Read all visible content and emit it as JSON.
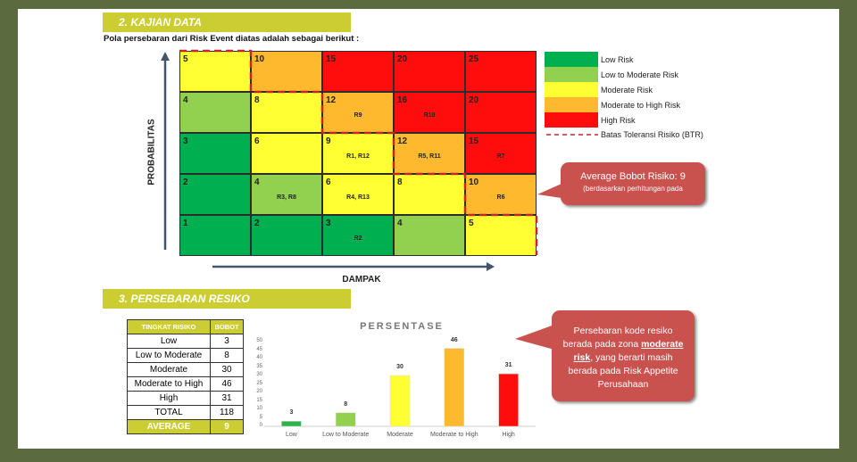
{
  "section2": {
    "title": "2. KAJIAN DATA",
    "intro": "Pola persebaran dari Risk Event diatas adalah sebagai berikut :"
  },
  "matrix": {
    "y_label": "PROBABILITAS",
    "x_label": "DAMPAK",
    "rows": [
      [
        {
          "v": "5",
          "r": "",
          "c": "yellow"
        },
        {
          "v": "10",
          "r": "",
          "c": "orange"
        },
        {
          "v": "15",
          "r": "",
          "c": "red"
        },
        {
          "v": "20",
          "r": "",
          "c": "red"
        },
        {
          "v": "25",
          "r": "",
          "c": "red"
        }
      ],
      [
        {
          "v": "4",
          "r": "",
          "c": "lightgreen"
        },
        {
          "v": "8",
          "r": "",
          "c": "yellow"
        },
        {
          "v": "12",
          "r": "R9",
          "c": "orange"
        },
        {
          "v": "16",
          "r": "R10",
          "c": "red"
        },
        {
          "v": "20",
          "r": "",
          "c": "red"
        }
      ],
      [
        {
          "v": "3",
          "r": "",
          "c": "green"
        },
        {
          "v": "6",
          "r": "",
          "c": "yellow"
        },
        {
          "v": "9",
          "r": "R1, R12",
          "c": "yellow"
        },
        {
          "v": "12",
          "r": "R5, R11",
          "c": "orange"
        },
        {
          "v": "15",
          "r": "R7",
          "c": "red"
        }
      ],
      [
        {
          "v": "2",
          "r": "",
          "c": "green"
        },
        {
          "v": "4",
          "r": "R3, R8",
          "c": "lightgreen"
        },
        {
          "v": "6",
          "r": "R4, R13",
          "c": "yellow"
        },
        {
          "v": "8",
          "r": "",
          "c": "yellow"
        },
        {
          "v": "10",
          "r": "R6",
          "c": "orange"
        }
      ],
      [
        {
          "v": "1",
          "r": "",
          "c": "green"
        },
        {
          "v": "2",
          "r": "",
          "c": "green"
        },
        {
          "v": "3",
          "r": "R2",
          "c": "green"
        },
        {
          "v": "4",
          "r": "",
          "c": "lightgreen"
        },
        {
          "v": "5",
          "r": "",
          "c": "yellow"
        }
      ]
    ]
  },
  "colors": {
    "green": "#00b050",
    "lightgreen": "#92d050",
    "yellow": "#ffff33",
    "orange": "#ffb92e",
    "red": "#ff0d0d",
    "btr": "#c0282a"
  },
  "legend": [
    {
      "label": "Low Risk",
      "c": "green"
    },
    {
      "label": "Low to Moderate Risk",
      "c": "lightgreen"
    },
    {
      "label": "Moderate Risk",
      "c": "yellow"
    },
    {
      "label": "Moderate to High Risk",
      "c": "orange"
    },
    {
      "label": "High Risk",
      "c": "red"
    }
  ],
  "legend_btr": "Batas Toleransi Risiko (BTR)",
  "callout1": {
    "line1": "Average Bobot Risiko: 9",
    "line2": "(berdasarkan perhitungan pada"
  },
  "section3": {
    "title": "3. PERSEBARAN RESIKO"
  },
  "table": {
    "headers": [
      "TINGKAT RISIKO",
      "BOBOT"
    ],
    "rows": [
      [
        "Low",
        "3"
      ],
      [
        "Low to Moderate",
        "8"
      ],
      [
        "Moderate",
        "30"
      ],
      [
        "Moderate to High",
        "46"
      ],
      [
        "High",
        "31"
      ],
      [
        "TOTAL",
        "118"
      ]
    ],
    "footer": [
      "AVERAGE",
      "9"
    ]
  },
  "callout2": {
    "pre": "Persebaran kode resiko berada pada zona",
    "em": "moderate risk",
    "post": ", yang berarti masih berada pada Risk Appetite Perusahaan"
  },
  "chart_data": {
    "type": "bar",
    "title": "PERSENTASE",
    "categories": [
      "Low",
      "Low to Moderate",
      "Moderate",
      "Moderate to High",
      "High"
    ],
    "values": [
      3,
      8,
      30,
      46,
      31
    ],
    "colors": [
      "#2db34a",
      "#92d050",
      "#ffff33",
      "#ffb92e",
      "#ff0d0d"
    ],
    "ylim": [
      0,
      50
    ],
    "yticks": [
      0,
      5,
      10,
      15,
      20,
      25,
      30,
      35,
      40,
      45,
      50
    ],
    "grid": false
  }
}
